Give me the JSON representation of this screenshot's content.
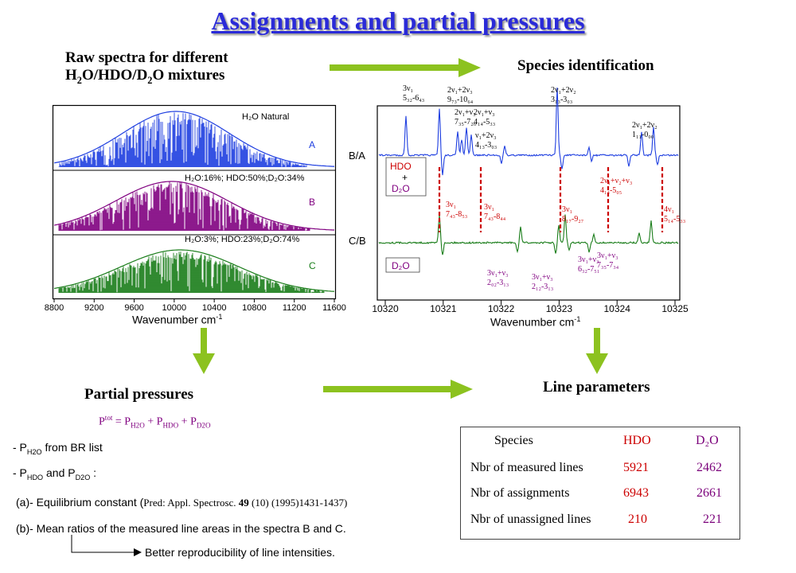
{
  "title": "Assignments and partial pressures",
  "raw_header": {
    "line1": "Raw spectra for different",
    "line2_parts": [
      "H",
      "2",
      "O/HDO/D",
      "2",
      "O mixtures"
    ]
  },
  "species_identification": "Species identification",
  "partial_pressures": "Partial pressures",
  "line_parameters": "Line parameters",
  "left_plot": {
    "ticks": [
      "8800",
      "9200",
      "9600",
      "10000",
      "10400",
      "10800",
      "11200",
      "11600"
    ],
    "xlabel": "Wavenumber cm",
    "xlabel_sup": "-1",
    "panels": [
      {
        "label": "H₂O Natural",
        "letter": "A",
        "color": "#1f3fe0"
      },
      {
        "label": "H₂O:16%; HDO:50%;D₂O:34%",
        "letter": "B",
        "color": "#800080"
      },
      {
        "label": "H₂O:3%; HDO:23%;D₂O:74%",
        "letter": "C",
        "color": "#1a7d1a"
      }
    ]
  },
  "right_plot": {
    "ticks": [
      "10320",
      "10321",
      "10322",
      "10323",
      "10324",
      "10325"
    ],
    "xlabel": "Wavenumber cm",
    "xlabel_sup": "-1",
    "label_ba": "B/A",
    "label_cb": "C/B",
    "hdo": "HDO",
    "plus": "+",
    "d2o_a": "D₂O",
    "d2o_b": "D₂O",
    "blue_annotations": [
      [
        "3ν₁",
        "5₃₂-6₄₃"
      ],
      [
        "2ν₁+2ν₃",
        "9₇₃-10₆₄"
      ],
      [
        "2ν₁+ν₃",
        "7₃₅-7₂₆"
      ],
      [
        "2ν₁+ν₃",
        "4₁₄-5₃₃"
      ],
      [
        "ν₁+2ν₃",
        "4₁₃-3₀₃"
      ],
      [
        "2ν₁+2ν₂",
        "3₁₃-3₀₃"
      ],
      [
        "2ν₁+2ν₂",
        "1₁₁-0₀₀"
      ]
    ],
    "red_annotations": [
      [
        "3ν₁",
        "7₄₃-8₅₃"
      ],
      [
        "3ν₁",
        "7₄₃-8₄₄"
      ],
      [
        "3ν₁",
        "8₁₇-9₂₇"
      ],
      [
        "2ν₁+ν₂+ν₃",
        "4₁₄-5₀₅"
      ],
      [
        "4ν₁",
        "5₁₄-5₃₃"
      ]
    ],
    "purple_annotations": [
      [
        "3ν₁+ν₃",
        "2₀₂-3₁₃"
      ],
      [
        "3ν₁+ν₃",
        "2₁₂-3₁₃"
      ],
      [
        "3ν₁+ν₃",
        "6₃₂-7₅₁"
      ],
      [
        "3ν₁+ν₃",
        "7₃₅-7₃₄"
      ]
    ]
  },
  "ptot": {
    "p": "P",
    "tot": "tot",
    "eq": " = P",
    "h2o": "H2O",
    "plus1": " + P",
    "hdo": "HDO",
    "plus2": " + P",
    "d2o": "D2O"
  },
  "bullet1": {
    "dash": "- P",
    "sub": "H2O",
    "rest": "  from BR list"
  },
  "bullet2": {
    "dash": "- P",
    "sub1": "HDO",
    "mid": "  and P",
    "sub2": "D2O",
    "rest": " :"
  },
  "item_a": {
    "text": "(a)- Equilibrium constant (",
    "ref_pre": "Pred: Appl. Spectrosc. ",
    "vol": "49",
    "ref_post": " (10) (1995)1431-1437)"
  },
  "item_b": "(b)- Mean ratios of the measured line areas in the spectra B and C.",
  "note": "Better reproducibility of line intensities.",
  "table": {
    "header": {
      "species": "Species",
      "hdo": "HDO",
      "d2o": "D₂O"
    },
    "rows": [
      {
        "label": "Nbr of measured lines",
        "hdo": "5921",
        "d2o": "2462"
      },
      {
        "label": "Nbr of assignments",
        "hdo": "6943",
        "d2o": "2661"
      },
      {
        "label": "Nbr of unassigned lines",
        "hdo": "210",
        "d2o": "221"
      }
    ]
  },
  "colors": {
    "title": "#2a2ad8",
    "arrow": "#8cc21f",
    "blue": "#1f3fe0",
    "purple": "#800080",
    "green": "#1a7d1a",
    "red": "#cc0000"
  }
}
